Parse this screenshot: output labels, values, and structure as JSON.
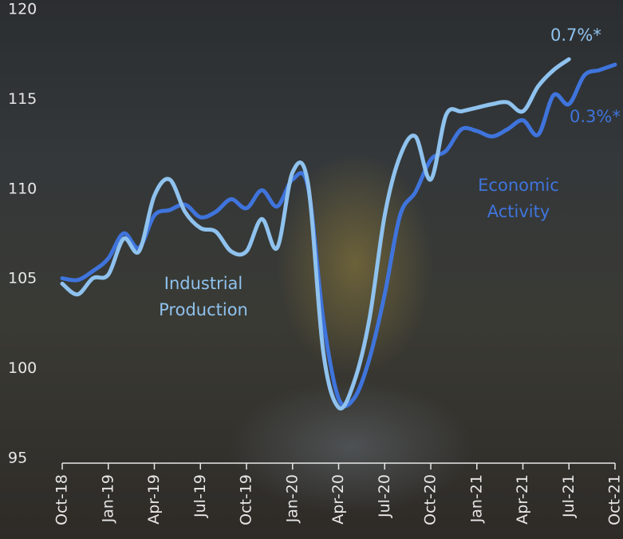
{
  "chart_data": {
    "type": "line",
    "categories": [
      "Oct-18",
      null,
      null,
      "Jan-19",
      null,
      null,
      "Apr-19",
      null,
      null,
      "Jul-19",
      null,
      null,
      "Oct-19",
      null,
      null,
      "Jan-20",
      null,
      null,
      "Apr-20",
      null,
      null,
      "Jul-20",
      null,
      null,
      "Oct-20",
      null,
      null,
      "Jan-21",
      null,
      null,
      "Apr-21",
      null,
      null,
      "Jul-21",
      null,
      null,
      "Oct-21"
    ],
    "series": [
      {
        "name": "Economic Activity",
        "color": "#3f74dc",
        "values": [
          105.3,
          105.2,
          105.7,
          106.4,
          107.8,
          107.0,
          108.8,
          109.1,
          109.4,
          108.7,
          109.0,
          109.7,
          109.2,
          110.2,
          109.3,
          110.8,
          110.4,
          103.0,
          98.6,
          98.6,
          100.8,
          104.4,
          108.8,
          110.1,
          111.9,
          112.4,
          113.6,
          113.5,
          113.2,
          113.6,
          114.1,
          113.3,
          115.5,
          115.0,
          116.6,
          116.9,
          117.2
        ]
      },
      {
        "name": "Industrial Production",
        "color": "#8fc2ee",
        "values": [
          105.0,
          104.4,
          105.3,
          105.5,
          107.5,
          106.8,
          109.9,
          110.8,
          109.0,
          108.1,
          107.9,
          106.8,
          106.8,
          108.6,
          107.0,
          111.2,
          110.6,
          101.2,
          98.1,
          99.5,
          103.0,
          108.8,
          112.1,
          113.2,
          110.8,
          114.4,
          114.6,
          114.8,
          115.0,
          115.1,
          114.6,
          116.0,
          116.9,
          117.5,
          null,
          null,
          null
        ]
      }
    ],
    "annotations": [
      "0.7%*",
      "0.3%*"
    ],
    "ylim": [
      95,
      120
    ],
    "yticks": [
      95,
      100,
      105,
      110,
      115,
      120
    ]
  }
}
